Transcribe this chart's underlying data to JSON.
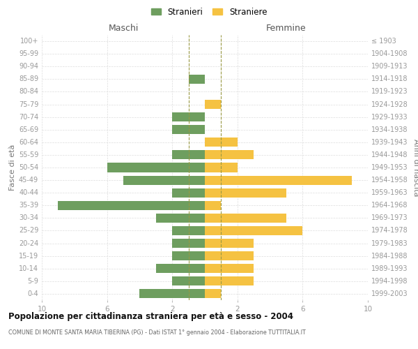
{
  "age_groups": [
    "100+",
    "95-99",
    "90-94",
    "85-89",
    "80-84",
    "75-79",
    "70-74",
    "65-69",
    "60-64",
    "55-59",
    "50-54",
    "45-49",
    "40-44",
    "35-39",
    "30-34",
    "25-29",
    "20-24",
    "15-19",
    "10-14",
    "5-9",
    "0-4"
  ],
  "birth_years": [
    "≤ 1903",
    "1904-1908",
    "1909-1913",
    "1914-1918",
    "1919-1923",
    "1924-1928",
    "1929-1933",
    "1934-1938",
    "1939-1943",
    "1944-1948",
    "1949-1953",
    "1954-1958",
    "1959-1963",
    "1964-1968",
    "1969-1973",
    "1974-1978",
    "1979-1983",
    "1984-1988",
    "1989-1993",
    "1994-1998",
    "1999-2003"
  ],
  "maschi": [
    0,
    0,
    0,
    1,
    0,
    0,
    2,
    2,
    0,
    2,
    6,
    5,
    2,
    9,
    3,
    2,
    2,
    2,
    3,
    2,
    4
  ],
  "femmine": [
    0,
    0,
    0,
    0,
    0,
    1,
    0,
    0,
    2,
    3,
    2,
    9,
    5,
    1,
    5,
    6,
    3,
    3,
    3,
    3,
    1
  ],
  "male_color": "#6e9e5f",
  "female_color": "#f5c242",
  "background_color": "#ffffff",
  "grid_color": "#cccccc",
  "title": "Popolazione per cittadinanza straniera per età e sesso - 2004",
  "subtitle": "COMUNE DI MONTE SANTA MARIA TIBERINA (PG) - Dati ISTAT 1° gennaio 2004 - Elaborazione TUTTITALIA.IT",
  "ylabel_left": "Fasce di età",
  "ylabel_right": "Anni di nascita",
  "header_left": "Maschi",
  "header_right": "Femmine",
  "legend_maschi": "Stranieri",
  "legend_femmine": "Straniere"
}
